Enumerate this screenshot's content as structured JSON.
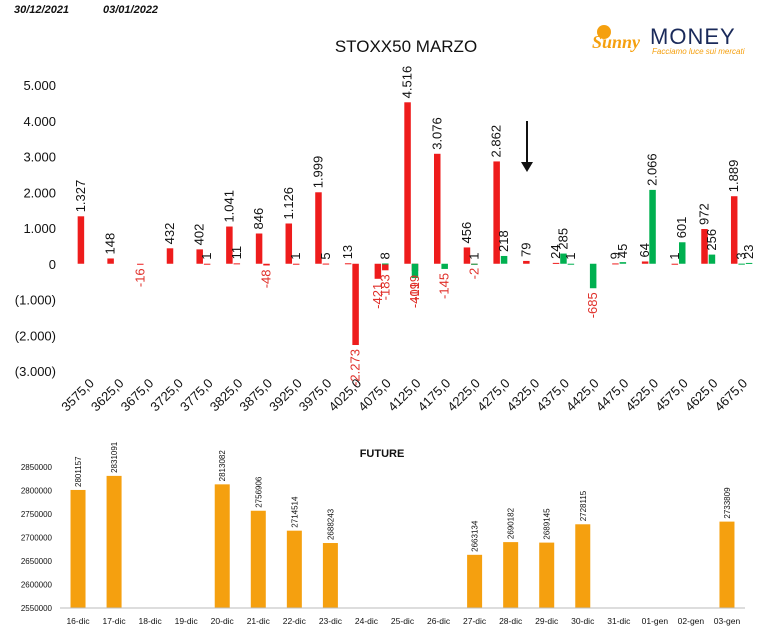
{
  "header": {
    "date_from": "30/12/2021",
    "date_to": "03/01/2022"
  },
  "logo": {
    "brand_left": "Sunny",
    "brand_right": "MONEY",
    "tagline": "Facciamo luce sui mercati"
  },
  "colors": {
    "call": "#ee1c1c",
    "put": "#00b050",
    "future": "#f5a00f",
    "negative_label": "#e0302a"
  },
  "chart_data": [
    {
      "type": "bar",
      "title": "STOXX50 MARZO",
      "ylim": [
        -3000,
        5000
      ],
      "yticks": [
        "5.000",
        "4.000",
        "3.000",
        "2.000",
        "1.000",
        "0",
        "(1.000)",
        "(2.000)",
        "(3.000)"
      ],
      "ytick_values": [
        5000,
        4000,
        3000,
        2000,
        1000,
        0,
        -1000,
        -2000,
        -3000
      ],
      "categories": [
        "3575,0",
        "3625,0",
        "3675,0",
        "3725,0",
        "3775,0",
        "3825,0",
        "3875,0",
        "3925,0",
        "3975,0",
        "4025,0",
        "4075,0",
        "4125,0",
        "4175,0",
        "4225,0",
        "4275,0",
        "4325,0",
        "4375,0",
        "4425,0",
        "4475,0",
        "4525,0",
        "4575,0",
        "4625,0",
        "4675,0"
      ],
      "series": [
        {
          "key": "call",
          "values": [
            1327,
            148,
            -16,
            432,
            402,
            1041,
            846,
            1126,
            1999,
            13,
            -421,
            4516,
            3076,
            456,
            2862,
            79,
            24,
            null,
            9,
            64,
            1,
            972,
            1889
          ]
        },
        {
          "key": "call2",
          "values": [
            null,
            null,
            null,
            null,
            1,
            11,
            -48,
            1,
            5,
            -2273,
            -183,
            -199,
            null,
            -2,
            null,
            null,
            null,
            null,
            null,
            null,
            null,
            null,
            null
          ]
        },
        {
          "key": "put",
          "values": [
            null,
            null,
            null,
            null,
            null,
            null,
            null,
            null,
            null,
            null,
            8,
            -401,
            -145,
            1,
            218,
            null,
            285,
            -685,
            45,
            2066,
            601,
            256,
            3
          ]
        },
        {
          "key": "put2",
          "values": [
            null,
            null,
            null,
            null,
            null,
            null,
            null,
            null,
            null,
            null,
            null,
            null,
            null,
            null,
            null,
            null,
            1,
            null,
            null,
            null,
            null,
            null,
            23
          ]
        }
      ],
      "annotation": "arrow-down"
    },
    {
      "type": "bar",
      "title": "FUTURE",
      "ylim": [
        2550000,
        2850000
      ],
      "yticks": [
        "2850000",
        "2800000",
        "2750000",
        "2700000",
        "2650000",
        "2600000",
        "2550000"
      ],
      "ytick_values": [
        2850000,
        2800000,
        2750000,
        2700000,
        2650000,
        2600000,
        2550000
      ],
      "categories": [
        "16-dic",
        "17-dic",
        "18-dic",
        "19-dic",
        "20-dic",
        "21-dic",
        "22-dic",
        "23-dic",
        "24-dic",
        "25-dic",
        "26-dic",
        "27-dic",
        "28-dic",
        "29-dic",
        "30-dic",
        "31-dic",
        "01-gen",
        "02-gen",
        "03-gen"
      ],
      "values": [
        2801157,
        2831091,
        null,
        null,
        2813082,
        2756906,
        2714514,
        2688243,
        null,
        null,
        null,
        2663134,
        2690182,
        2689145,
        2728115,
        null,
        null,
        null,
        2733809
      ],
      "labels": [
        "2801157",
        "2831091",
        "",
        "",
        "2813082",
        "2756906",
        "2714514",
        "2688243",
        "",
        "",
        "",
        "2663134",
        "2690182",
        "2689145",
        "2728115",
        "",
        "",
        "",
        "2733809"
      ]
    }
  ]
}
